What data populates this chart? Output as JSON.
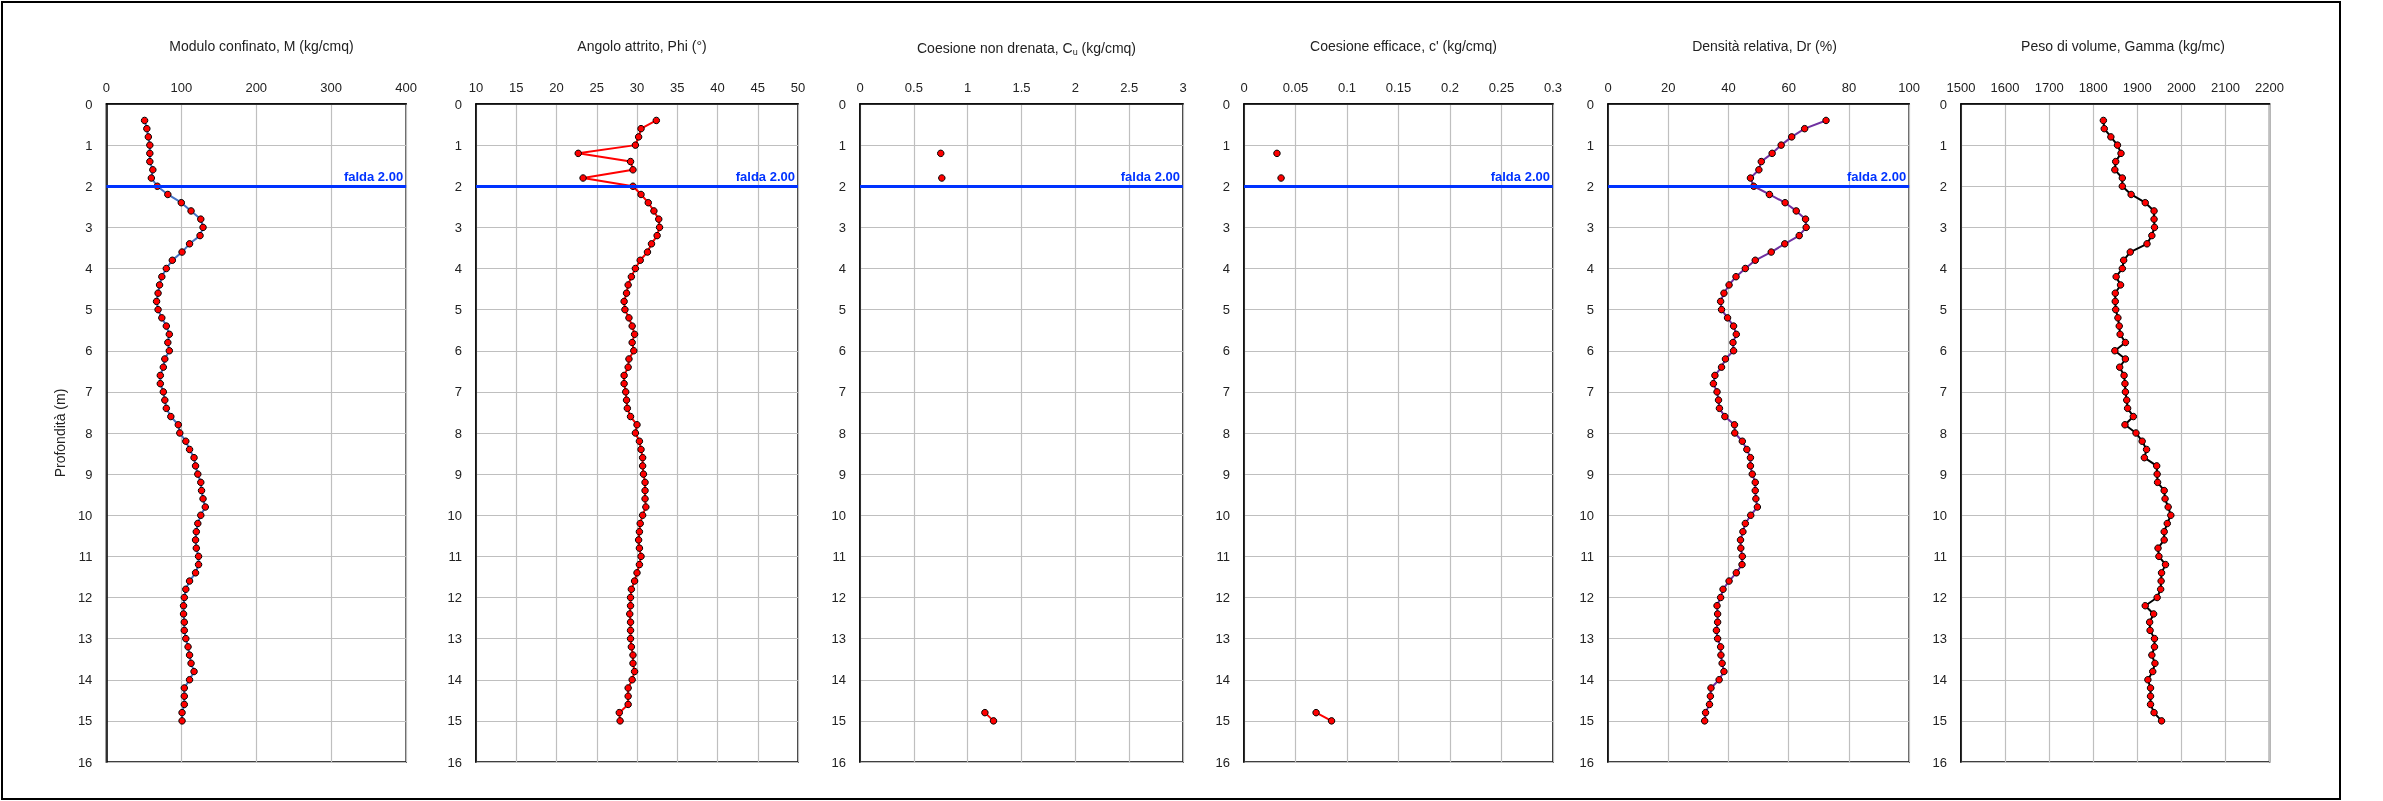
{
  "chart_data": [
    {
      "type": "line",
      "title": "Modulo confinato, M (kg/cmq)",
      "ylabel": "Profondità (m)",
      "xlim": [
        0,
        400
      ],
      "xticks": [
        0,
        100,
        200,
        300,
        400
      ],
      "ylim": [
        16,
        0
      ],
      "yticks": [
        0,
        1,
        2,
        3,
        4,
        5,
        6,
        7,
        8,
        9,
        10,
        11,
        12,
        13,
        14,
        15,
        16
      ],
      "grid": true,
      "marker": "circle",
      "line_style": "solid",
      "ref_lines": [
        {
          "axis": "y",
          "value": 2,
          "label": "falda 2.00",
          "color": "#0033ff"
        }
      ],
      "series": [
        {
          "color": "#4472c4",
          "x": [
            51,
            54,
            56,
            58,
            58,
            58,
            62,
            60,
            68,
            82,
            100,
            113,
            126,
            129,
            125,
            111,
            101,
            88,
            80,
            74,
            71,
            69,
            67,
            69,
            74,
            80,
            84,
            82,
            84,
            78,
            76,
            72,
            72,
            76,
            78,
            80,
            86,
            96,
            98,
            106,
            111,
            117,
            119,
            122,
            126,
            127,
            129,
            132,
            126,
            122,
            120,
            119,
            120,
            123,
            123,
            119,
            111,
            106,
            104,
            103,
            103,
            104,
            104,
            106,
            109,
            111,
            113,
            117,
            111,
            104,
            104,
            104,
            101,
            101
          ],
          "values": [
            0.4,
            0.6,
            0.8,
            1.0,
            1.2,
            1.4,
            1.6,
            1.8,
            2.0,
            2.2,
            2.4,
            2.6,
            2.8,
            3.0,
            3.2,
            3.4,
            3.6,
            3.8,
            4.0,
            4.2,
            4.4,
            4.6,
            4.8,
            5.0,
            5.2,
            5.4,
            5.6,
            5.8,
            6.0,
            6.2,
            6.4,
            6.6,
            6.8,
            7.0,
            7.2,
            7.4,
            7.6,
            7.8,
            8.0,
            8.2,
            8.4,
            8.6,
            8.8,
            9.0,
            9.2,
            9.4,
            9.6,
            9.8,
            10.0,
            10.2,
            10.4,
            10.6,
            10.8,
            11.0,
            11.2,
            11.4,
            11.6,
            11.8,
            12.0,
            12.2,
            12.4,
            12.6,
            12.8,
            13.0,
            13.2,
            13.4,
            13.6,
            13.8,
            14.0,
            14.2,
            14.4,
            14.6,
            14.8,
            15.0
          ]
        }
      ]
    },
    {
      "type": "line",
      "title": "Angolo attrito, Phi (°)",
      "xlim": [
        10,
        50
      ],
      "xticks": [
        10,
        15,
        20,
        25,
        30,
        35,
        40,
        45,
        50
      ],
      "ylim": [
        16,
        0
      ],
      "yticks": [
        0,
        1,
        2,
        3,
        4,
        5,
        6,
        7,
        8,
        9,
        10,
        11,
        12,
        13,
        14,
        15,
        16
      ],
      "grid": true,
      "marker": "circle",
      "line_style": "solid",
      "ref_lines": [
        {
          "axis": "y",
          "value": 2,
          "label": "falda 2.00",
          "color": "#0033ff"
        }
      ],
      "series": [
        {
          "color": "#ff0000",
          "x": [
            32.4,
            30.5,
            30.2,
            29.8,
            22.7,
            29.2,
            29.5,
            23.3,
            29.5,
            30.5,
            31.4,
            32.1,
            32.7,
            32.8,
            32.5,
            31.8,
            31.3,
            30.4,
            29.8,
            29.3,
            28.9,
            28.7,
            28.4,
            28.5,
            29.0,
            29.4,
            29.7,
            29.4,
            29.6,
            29.0,
            28.9,
            28.4,
            28.4,
            28.6,
            28.7,
            28.8,
            29.2,
            30.0,
            29.8,
            30.3,
            30.5,
            30.7,
            30.7,
            30.8,
            31.0,
            31.0,
            31.0,
            31.1,
            30.7,
            30.4,
            30.3,
            30.2,
            30.3,
            30.5,
            30.3,
            30.0,
            29.7,
            29.3,
            29.2,
            29.2,
            29.1,
            29.2,
            29.2,
            29.2,
            29.3,
            29.5,
            29.5,
            29.7,
            29.4,
            28.9,
            28.9,
            28.9,
            27.8,
            27.9
          ],
          "values": [
            0.4,
            0.6,
            0.8,
            1.0,
            1.2,
            1.4,
            1.6,
            1.8,
            2.0,
            2.2,
            2.4,
            2.6,
            2.8,
            3.0,
            3.2,
            3.4,
            3.6,
            3.8,
            4.0,
            4.2,
            4.4,
            4.6,
            4.8,
            5.0,
            5.2,
            5.4,
            5.6,
            5.8,
            6.0,
            6.2,
            6.4,
            6.6,
            6.8,
            7.0,
            7.2,
            7.4,
            7.6,
            7.8,
            8.0,
            8.2,
            8.4,
            8.6,
            8.8,
            9.0,
            9.2,
            9.4,
            9.6,
            9.8,
            10.0,
            10.2,
            10.4,
            10.6,
            10.8,
            11.0,
            11.2,
            11.4,
            11.6,
            11.8,
            12.0,
            12.2,
            12.4,
            12.6,
            12.8,
            13.0,
            13.2,
            13.4,
            13.6,
            13.8,
            14.0,
            14.2,
            14.4,
            14.6,
            14.8,
            15.0
          ]
        }
      ]
    },
    {
      "type": "line",
      "title": "Coesione non drenata, C$_{u}$ (kg/cmq)",
      "xlim": [
        0,
        3
      ],
      "xticks": [
        0,
        0.5,
        1,
        1.5,
        2,
        2.5,
        3
      ],
      "ylim": [
        16,
        0
      ],
      "yticks": [
        0,
        1,
        2,
        3,
        4,
        5,
        6,
        7,
        8,
        9,
        10,
        11,
        12,
        13,
        14,
        15,
        16
      ],
      "grid": true,
      "marker": "circle",
      "line_style": "solid",
      "ref_lines": [
        {
          "axis": "y",
          "value": 2,
          "label": "falda 2.00",
          "color": "#0033ff"
        }
      ],
      "series": [
        {
          "color": "#ff0000",
          "x": [
            0.75,
            null,
            0.76,
            null,
            1.16,
            1.24
          ],
          "values": [
            1.2,
            null,
            1.8,
            null,
            14.8,
            15.0
          ]
        }
      ]
    },
    {
      "type": "line",
      "title": "Coesione efficace, c' (kg/cmq)",
      "xlim": [
        0,
        0.3
      ],
      "xticks": [
        0,
        0.05,
        0.1,
        0.15,
        0.2,
        0.25,
        0.3
      ],
      "ylim": [
        16,
        0
      ],
      "yticks": [
        0,
        1,
        2,
        3,
        4,
        5,
        6,
        7,
        8,
        9,
        10,
        11,
        12,
        13,
        14,
        15,
        16
      ],
      "grid": true,
      "marker": "circle",
      "line_style": "solid",
      "ref_lines": [
        {
          "axis": "y",
          "value": 2,
          "label": "falda 2.00",
          "color": "#0033ff"
        }
      ],
      "series": [
        {
          "color": "#ff0000",
          "x": [
            0.032,
            null,
            0.036,
            null,
            0.07,
            0.085
          ],
          "values": [
            1.2,
            null,
            1.8,
            null,
            14.8,
            15.0
          ]
        }
      ]
    },
    {
      "type": "line",
      "title": "Densità relativa, Dr (%)",
      "xlim": [
        0,
        100
      ],
      "xticks": [
        0,
        20,
        40,
        60,
        80,
        100
      ],
      "ylim": [
        16,
        0
      ],
      "yticks": [
        0,
        1,
        2,
        3,
        4,
        5,
        6,
        7,
        8,
        9,
        10,
        11,
        12,
        13,
        14,
        15,
        16
      ],
      "grid": true,
      "marker": "circle",
      "line_style": "solid",
      "ref_lines": [
        {
          "axis": "y",
          "value": 2,
          "label": "falda 2.00",
          "color": "#0033ff"
        }
      ],
      "series": [
        {
          "color": "#7030a0",
          "x": [
            72.4,
            65.3,
            61.0,
            57.5,
            54.5,
            50.9,
            50.1,
            47.3,
            48.4,
            53.6,
            58.8,
            62.5,
            65.6,
            65.8,
            63.5,
            58.7,
            54.2,
            48.9,
            45.6,
            42.5,
            40.2,
            38.5,
            37.4,
            37.7,
            39.7,
            41.7,
            42.6,
            41.5,
            41.7,
            39.0,
            37.7,
            35.5,
            35.0,
            36.2,
            36.7,
            37.0,
            38.8,
            42.0,
            42.1,
            44.6,
            46.1,
            47.3,
            47.3,
            47.9,
            48.9,
            48.9,
            49.1,
            49.6,
            47.4,
            45.6,
            44.8,
            44.0,
            44.1,
            44.6,
            44.5,
            42.6,
            40.2,
            38.2,
            37.4,
            36.2,
            36.4,
            36.4,
            36.0,
            36.4,
            37.4,
            37.5,
            37.9,
            38.5,
            36.9,
            34.2,
            34.0,
            33.7,
            32.4,
            32.1
          ],
          "values": [
            0.4,
            0.6,
            0.8,
            1.0,
            1.2,
            1.4,
            1.6,
            1.8,
            2.0,
            2.2,
            2.4,
            2.6,
            2.8,
            3.0,
            3.2,
            3.4,
            3.6,
            3.8,
            4.0,
            4.2,
            4.4,
            4.6,
            4.8,
            5.0,
            5.2,
            5.4,
            5.6,
            5.8,
            6.0,
            6.2,
            6.4,
            6.6,
            6.8,
            7.0,
            7.2,
            7.4,
            7.6,
            7.8,
            8.0,
            8.2,
            8.4,
            8.6,
            8.8,
            9.0,
            9.2,
            9.4,
            9.6,
            9.8,
            10.0,
            10.2,
            10.4,
            10.6,
            10.8,
            11.0,
            11.2,
            11.4,
            11.6,
            11.8,
            12.0,
            12.2,
            12.4,
            12.6,
            12.8,
            13.0,
            13.2,
            13.4,
            13.6,
            13.8,
            14.0,
            14.2,
            14.4,
            14.6,
            14.8,
            15.0
          ]
        }
      ]
    },
    {
      "type": "line",
      "title": "Peso di volume, Gamma (kg/mc)",
      "xlim": [
        1500,
        2200
      ],
      "xticks": [
        1500,
        1600,
        1700,
        1800,
        1900,
        2000,
        2100,
        2200
      ],
      "ylim": [
        16,
        0
      ],
      "yticks": [
        0,
        1,
        2,
        3,
        4,
        5,
        6,
        7,
        8,
        9,
        10,
        11,
        12,
        13,
        14,
        15,
        16
      ],
      "grid": true,
      "marker": "circle",
      "line_style": "solid",
      "series": [
        {
          "color": "#000000",
          "x": [
            1823,
            1825,
            1840,
            1855,
            1863,
            1851,
            1849,
            1866,
            1866,
            1886,
            1918,
            1938,
            1938,
            1939,
            1933,
            1922,
            1884,
            1869,
            1866,
            1852,
            1862,
            1850,
            1850,
            1851,
            1856,
            1859,
            1861,
            1873,
            1849,
            1873,
            1860,
            1870,
            1872,
            1873,
            1876,
            1878,
            1891,
            1872,
            1897,
            1911,
            1921,
            1916,
            1944,
            1945,
            1946,
            1961,
            1963,
            1970,
            1976,
            1968,
            1961,
            1961,
            1947,
            1949,
            1964,
            1955,
            1954,
            1953,
            1945,
            1918,
            1937,
            1928,
            1929,
            1939,
            1939,
            1933,
            1940,
            1935,
            1924,
            1930,
            1930,
            1930,
            1938,
            1955
          ],
          "values": [
            0.4,
            0.6,
            0.8,
            1.0,
            1.2,
            1.4,
            1.6,
            1.8,
            2.0,
            2.2,
            2.4,
            2.6,
            2.8,
            3.0,
            3.2,
            3.4,
            3.6,
            3.8,
            4.0,
            4.2,
            4.4,
            4.6,
            4.8,
            5.0,
            5.2,
            5.4,
            5.6,
            5.8,
            6.0,
            6.2,
            6.4,
            6.6,
            6.8,
            7.0,
            7.2,
            7.4,
            7.6,
            7.8,
            8.0,
            8.2,
            8.4,
            8.6,
            8.8,
            9.0,
            9.2,
            9.4,
            9.6,
            9.8,
            10.0,
            10.2,
            10.4,
            10.6,
            10.8,
            11.0,
            11.2,
            11.4,
            11.6,
            11.8,
            12.0,
            12.2,
            12.4,
            12.6,
            12.8,
            13.0,
            13.2,
            13.4,
            13.6,
            13.8,
            14.0,
            14.2,
            14.4,
            14.6,
            14.8,
            15.0
          ]
        }
      ]
    }
  ]
}
